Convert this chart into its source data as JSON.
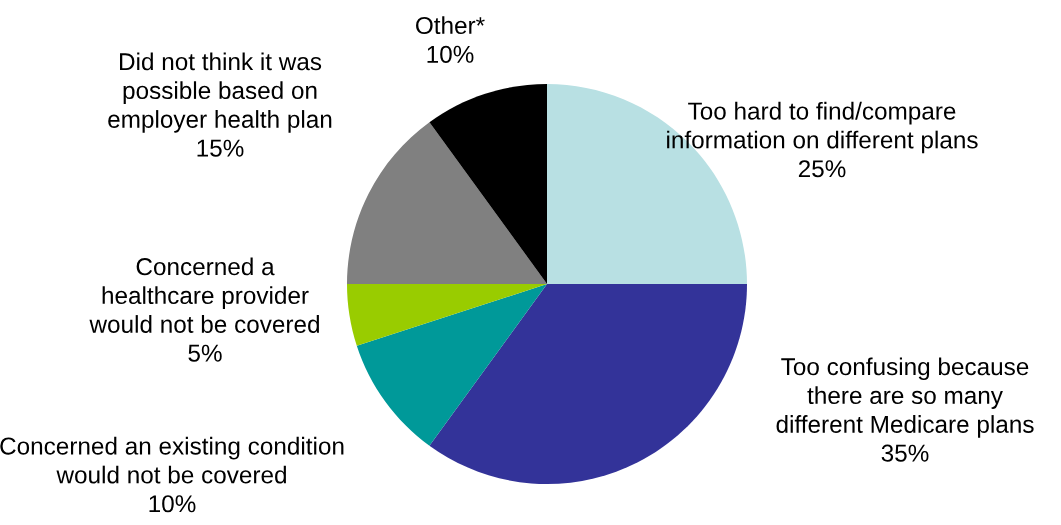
{
  "chart_data": {
    "type": "pie",
    "categories": [
      "Too hard to find/compare\ninformation on different plans",
      "Too confusing because\nthere are so many\ndifferent Medicare plans",
      "Concerned an existing condition\nwould not be covered",
      "Concerned a\nhealthcare provider\nwould not be covered",
      "Did not think it was\npossible based on\nemployer health plan",
      "Other*"
    ],
    "values": [
      25,
      35,
      10,
      5,
      15,
      10
    ],
    "value_labels": [
      "25%",
      "35%",
      "10%",
      "5%",
      "15%",
      "10%"
    ],
    "colors": [
      "#b8e0e3",
      "#333399",
      "#009999",
      "#99cc00",
      "#808080",
      "#000000"
    ],
    "legend": false
  }
}
